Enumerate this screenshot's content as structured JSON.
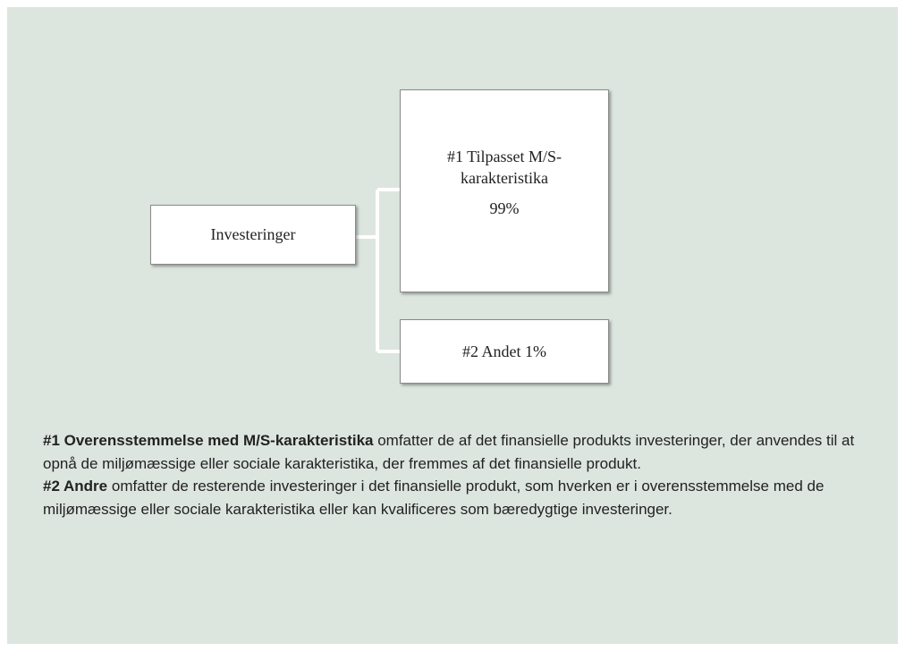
{
  "diagram": {
    "root": {
      "label": "Investeringer"
    },
    "children": [
      {
        "label": "#1 Tilpasset M/S-karakteristika",
        "value": "99%"
      },
      {
        "label": "#2 Andet 1%"
      }
    ]
  },
  "legend": [
    {
      "term": "#1 Overensstemmelse med M/S-karakteristika",
      "text": "omfatter de af det finansielle produkts investeringer, der anvendes til at opnå de miljømæssige eller sociale karakteristika, der fremmes af det finansielle produkt."
    },
    {
      "term": "#2 Andre",
      "text": "omfatter de resterende investeringer i det finansielle produkt, som hverken er i overensstemmelse med de miljømæssige eller sociale karakteristika eller kan kvalificeres som bæredygtige investeringer."
    }
  ]
}
